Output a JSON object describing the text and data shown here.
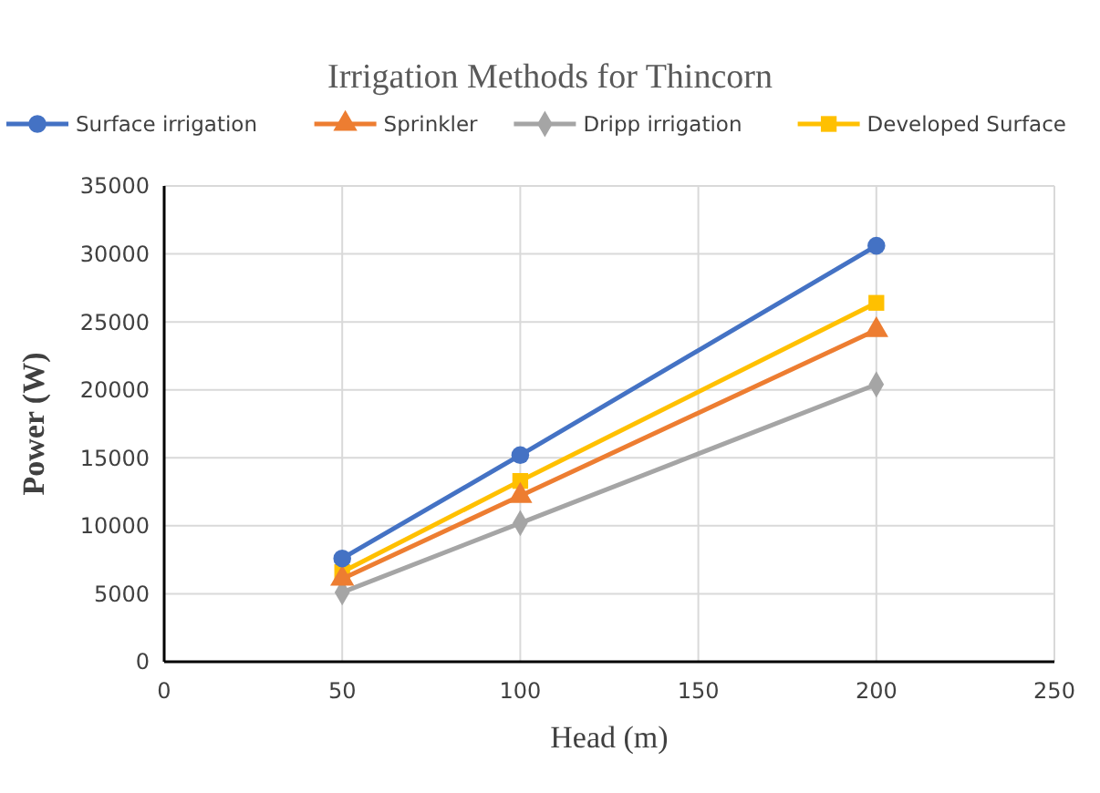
{
  "chart_data": {
    "type": "line",
    "title": "Irrigation Methods for Thincorn",
    "xlabel": "Head (m)",
    "ylabel": "Power (W)",
    "x": [
      50,
      100,
      200
    ],
    "series": [
      {
        "name": "Surface irrigation",
        "color": "#4472c4",
        "marker": "circle",
        "values": [
          7600,
          15200,
          30600
        ]
      },
      {
        "name": "Sprinkler",
        "color": "#ed7d31",
        "marker": "triangle",
        "values": [
          6100,
          12200,
          24400
        ]
      },
      {
        "name": "Dripp irrigation",
        "color": "#a5a5a5",
        "marker": "diamond",
        "values": [
          5100,
          10200,
          20400
        ]
      },
      {
        "name": "Developed Surface",
        "color": "#ffc000",
        "marker": "square",
        "values": [
          6600,
          13300,
          26400
        ]
      }
    ],
    "xlim": [
      0,
      250
    ],
    "xticks": [
      0,
      50,
      100,
      150,
      200,
      250
    ],
    "ylim": [
      0,
      35000
    ],
    "yticks": [
      0,
      5000,
      10000,
      15000,
      20000,
      25000,
      30000,
      35000
    ],
    "grid": true,
    "legend": "top"
  }
}
